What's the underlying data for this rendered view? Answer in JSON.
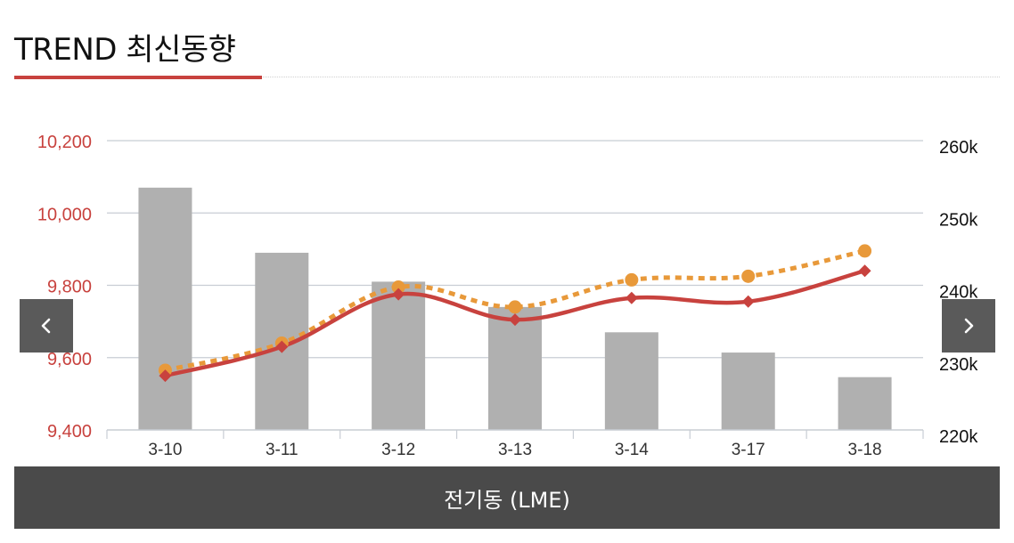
{
  "header": {
    "title": "TREND 최신동향"
  },
  "nav": {
    "prev_icon": "chevron-left-icon",
    "next_icon": "chevron-right-icon"
  },
  "footer": {
    "label": "전기동 (LME)"
  },
  "colors": {
    "accent": "#c8423e",
    "line_primary": "#c8423e",
    "line_secondary": "#e8993a",
    "bars": "#b0b0b0",
    "left_axis_text": "#c8423e",
    "right_axis_text": "#111111",
    "grid": "#c8cdd4",
    "nav_bg": "#5a5a5a",
    "footer_bg": "#4a4a4a"
  },
  "chart_data": {
    "type": "bar+line",
    "categories": [
      "3-10",
      "3-11",
      "3-12",
      "3-13",
      "3-14",
      "3-17",
      "3-18"
    ],
    "left_axis": {
      "min": 9400,
      "max": 10200,
      "ticks": [
        "10,200",
        "10,000",
        "9,800",
        "9,600",
        "9,400"
      ],
      "tick_values": [
        10200,
        10000,
        9800,
        9600,
        9400
      ]
    },
    "right_axis": {
      "min": 220000,
      "max": 260000,
      "ticks": [
        "260k",
        "250k",
        "240k",
        "230k",
        "220k"
      ],
      "tick_values": [
        260000,
        250000,
        240000,
        230000,
        220000
      ]
    },
    "bars": {
      "axis": "right",
      "values": [
        253500,
        244500,
        240500,
        237000,
        233500,
        230700,
        227300
      ]
    },
    "series": [
      {
        "axis": "left",
        "style": "solid",
        "marker": "diamond",
        "values": [
          9550,
          9630,
          9775,
          9705,
          9765,
          9755,
          9840
        ]
      },
      {
        "axis": "left",
        "style": "dotted",
        "marker": "circle",
        "values": [
          9565,
          9640,
          9795,
          9740,
          9815,
          9825,
          9895
        ]
      }
    ],
    "grid": true
  }
}
